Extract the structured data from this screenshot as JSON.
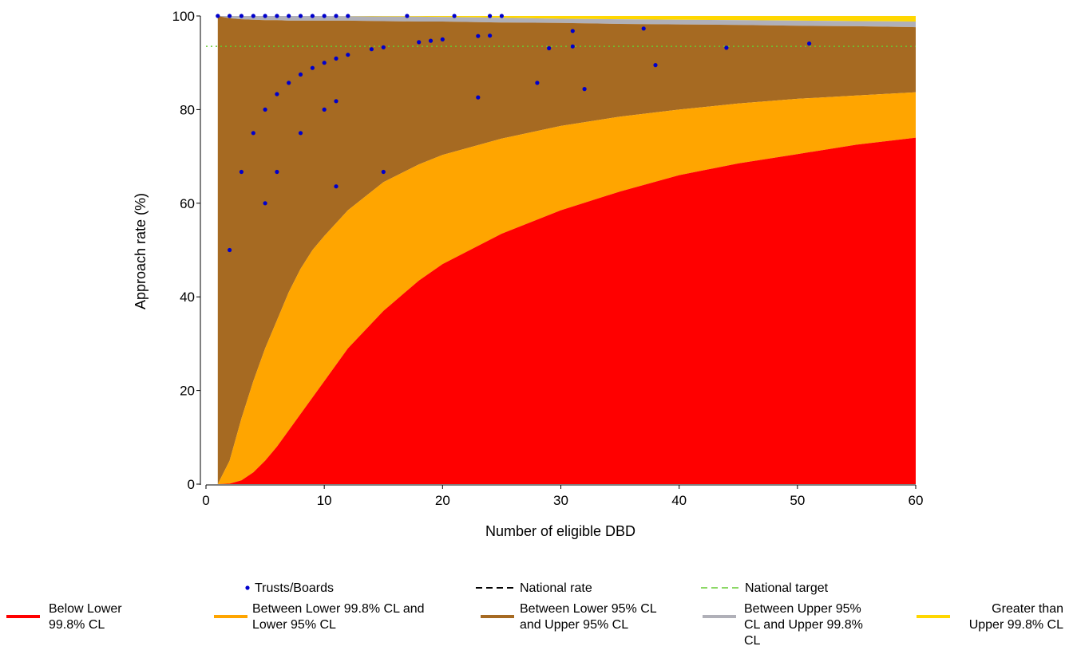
{
  "colors": {
    "below_lower_998": "#FF0000",
    "between_lower_998_lower_95": "#FFA500",
    "between_lower_95_upper_95": "#A66A22",
    "between_upper_95_upper_998": "#B0B0B8",
    "greater_upper_998": "#FFD700",
    "points": "#0000CC",
    "national_rate": "#000000",
    "national_target": "#66CC33"
  },
  "chart_data": {
    "type": "scatter",
    "title": "",
    "xlabel": "Number of eligible DBD",
    "ylabel": "Approach rate (%)",
    "xlim": [
      0,
      60
    ],
    "ylim": [
      0,
      100
    ],
    "xticks": [
      "0",
      "10",
      "20",
      "30",
      "40",
      "50",
      "60"
    ],
    "yticks": [
      "0",
      "20",
      "40",
      "60",
      "80",
      "100"
    ],
    "national_target": 93.5,
    "bands": {
      "x": [
        1,
        2,
        3,
        4,
        5,
        6,
        7,
        8,
        9,
        10,
        12,
        15,
        18,
        20,
        25,
        30,
        35,
        40,
        45,
        50,
        55,
        60
      ],
      "lower_998": [
        0,
        0.1,
        0.8,
        2.5,
        5,
        8,
        11.5,
        15,
        18.5,
        22,
        29,
        37,
        43.5,
        47,
        53.5,
        58.5,
        62.5,
        66,
        68.5,
        70.5,
        72.5,
        74
      ],
      "lower_95": [
        0,
        5,
        14,
        22,
        29,
        35,
        41,
        46,
        50,
        53,
        58.5,
        64.5,
        68.3,
        70.3,
        73.8,
        76.5,
        78.5,
        80,
        81.3,
        82.3,
        83,
        83.7
      ],
      "upper_95": [
        100,
        99.5,
        99.3,
        99.2,
        99.1,
        99.1,
        99,
        99,
        99,
        99,
        99,
        98.9,
        98.8,
        98.8,
        98.6,
        98.5,
        98.3,
        98.2,
        98.1,
        97.9,
        97.8,
        97.6
      ],
      "upper_998": [
        100,
        100,
        100,
        100,
        100,
        100,
        100,
        100,
        100,
        100,
        99.95,
        99.9,
        99.85,
        99.8,
        99.6,
        99.4,
        99.3,
        99.2,
        99.1,
        99,
        98.9,
        98.8
      ]
    },
    "series": [
      {
        "name": "Trusts/Boards",
        "points": [
          [
            1,
            100
          ],
          [
            2,
            100
          ],
          [
            3,
            100
          ],
          [
            4,
            100
          ],
          [
            5,
            100
          ],
          [
            6,
            100
          ],
          [
            7,
            100
          ],
          [
            8,
            100
          ],
          [
            9,
            100
          ],
          [
            10,
            100
          ],
          [
            11,
            100
          ],
          [
            12,
            100
          ],
          [
            17,
            100
          ],
          [
            21,
            100
          ],
          [
            24,
            100
          ],
          [
            25,
            100
          ],
          [
            2,
            50
          ],
          [
            3,
            66.7
          ],
          [
            4,
            75
          ],
          [
            5,
            60
          ],
          [
            5,
            80
          ],
          [
            6,
            66.7
          ],
          [
            6,
            83.3
          ],
          [
            7,
            85.7
          ],
          [
            8,
            75
          ],
          [
            8,
            87.5
          ],
          [
            9,
            88.9
          ],
          [
            10,
            80
          ],
          [
            10,
            90
          ],
          [
            11,
            63.6
          ],
          [
            11,
            81.8
          ],
          [
            11,
            90.9
          ],
          [
            12,
            91.7
          ],
          [
            14,
            92.9
          ],
          [
            15,
            66.7
          ],
          [
            15,
            93.3
          ],
          [
            18,
            94.4
          ],
          [
            19,
            94.7
          ],
          [
            20,
            95
          ],
          [
            23,
            82.6
          ],
          [
            23,
            95.7
          ],
          [
            24,
            95.8
          ],
          [
            28,
            85.7
          ],
          [
            29,
            93.1
          ],
          [
            31,
            93.5
          ],
          [
            31,
            96.8
          ],
          [
            32,
            84.4
          ],
          [
            37,
            97.3
          ],
          [
            38,
            89.5
          ],
          [
            44,
            93.2
          ],
          [
            51,
            94.1
          ]
        ]
      }
    ],
    "legend": {
      "row1": [
        {
          "key": "points",
          "label": "Trusts/Boards"
        },
        {
          "key": "national_rate",
          "label": "National rate"
        },
        {
          "key": "national_target",
          "label": "National target"
        }
      ],
      "row2": [
        {
          "key": "below_lower_998",
          "label": "Below Lower 99.8% CL"
        },
        {
          "key": "between_lower_998_lower_95",
          "label": "Between Lower 99.8% CL and Lower 95% CL"
        },
        {
          "key": "between_lower_95_upper_95",
          "label": "Between Lower 95% CL and Upper 95% CL"
        },
        {
          "key": "between_upper_95_upper_998",
          "label": "Between Upper 95% CL and Upper 99.8% CL"
        },
        {
          "key": "greater_upper_998",
          "label": "Greater than Upper 99.8% CL"
        }
      ]
    }
  }
}
